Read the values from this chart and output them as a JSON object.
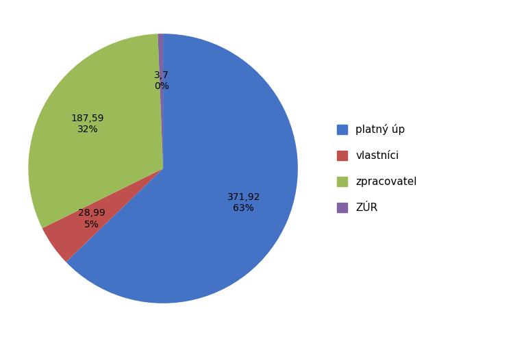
{
  "labels": [
    "platný úp",
    "vlastníci",
    "zpracovatel",
    "ZÚR"
  ],
  "values": [
    371.92,
    28.99,
    187.59,
    3.7
  ],
  "colors": [
    "#4472C4",
    "#C0504D",
    "#9BBB59",
    "#8064A2"
  ],
  "legend_labels": [
    "platný úp",
    "vlastníci",
    "zpracovatel",
    "ZÚR"
  ],
  "background_color": "#ffffff",
  "label_fontsize": 10,
  "legend_fontsize": 11,
  "startangle": 90,
  "figure_width": 7.68,
  "figure_height": 4.92
}
